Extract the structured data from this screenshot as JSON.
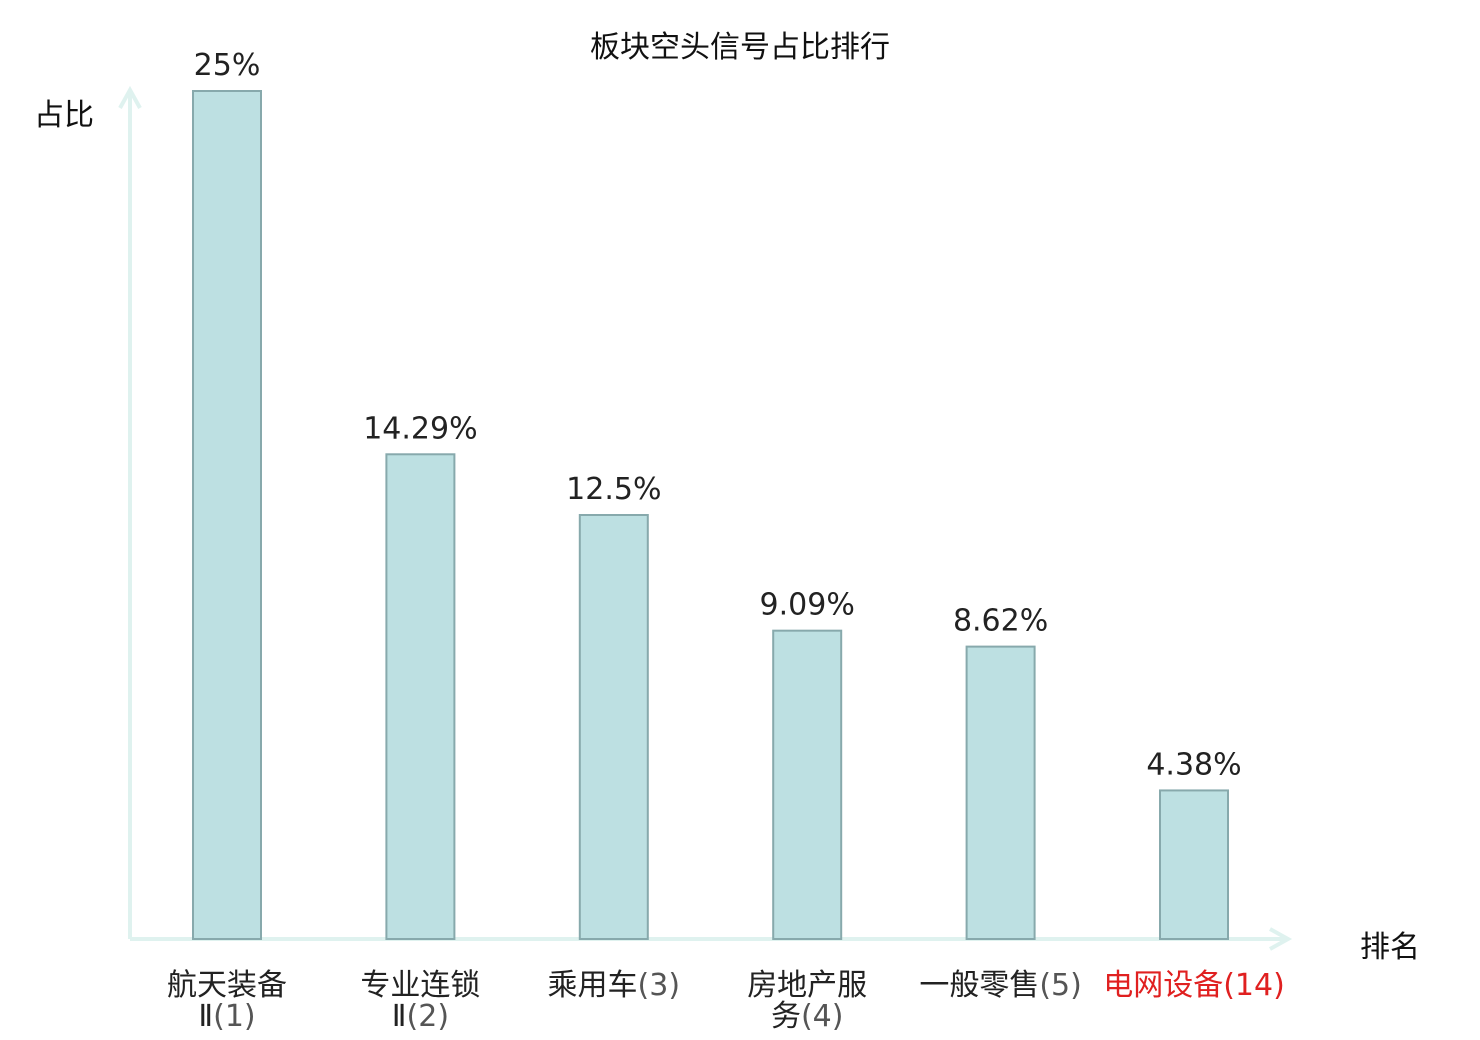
{
  "chart_data": {
    "type": "bar",
    "title": "板块空头信号占比排行",
    "ylabel": "占比",
    "xlabel": "排名",
    "categories": [
      {
        "name": "航天装备",
        "line2": "Ⅱ",
        "rank": "(1)"
      },
      {
        "name": "专业连锁",
        "line2": "Ⅱ",
        "rank": "(2)"
      },
      {
        "name": "乘用车",
        "line2": "",
        "rank": "(3)"
      },
      {
        "name": "房地产服",
        "line2": "务",
        "rank": "(4)"
      },
      {
        "name": "一般零售",
        "line2": "",
        "rank": "(5)"
      },
      {
        "name": "电网设备",
        "line2": "",
        "rank": "(14)",
        "highlight": true
      }
    ],
    "values": [
      25,
      14.29,
      12.5,
      9.09,
      8.62,
      4.38
    ],
    "value_labels": [
      "25%",
      "14.29%",
      "12.5%",
      "9.09%",
      "8.62%",
      "4.38%"
    ],
    "ylim": [
      0,
      25
    ],
    "grid": false,
    "colors": {
      "bar_fill": "#bde0e2",
      "bar_stroke": "#87a9ac",
      "axis": "#dff2ef",
      "text": "#222222",
      "rank_text": "#555555",
      "highlight": "#e02020"
    }
  }
}
